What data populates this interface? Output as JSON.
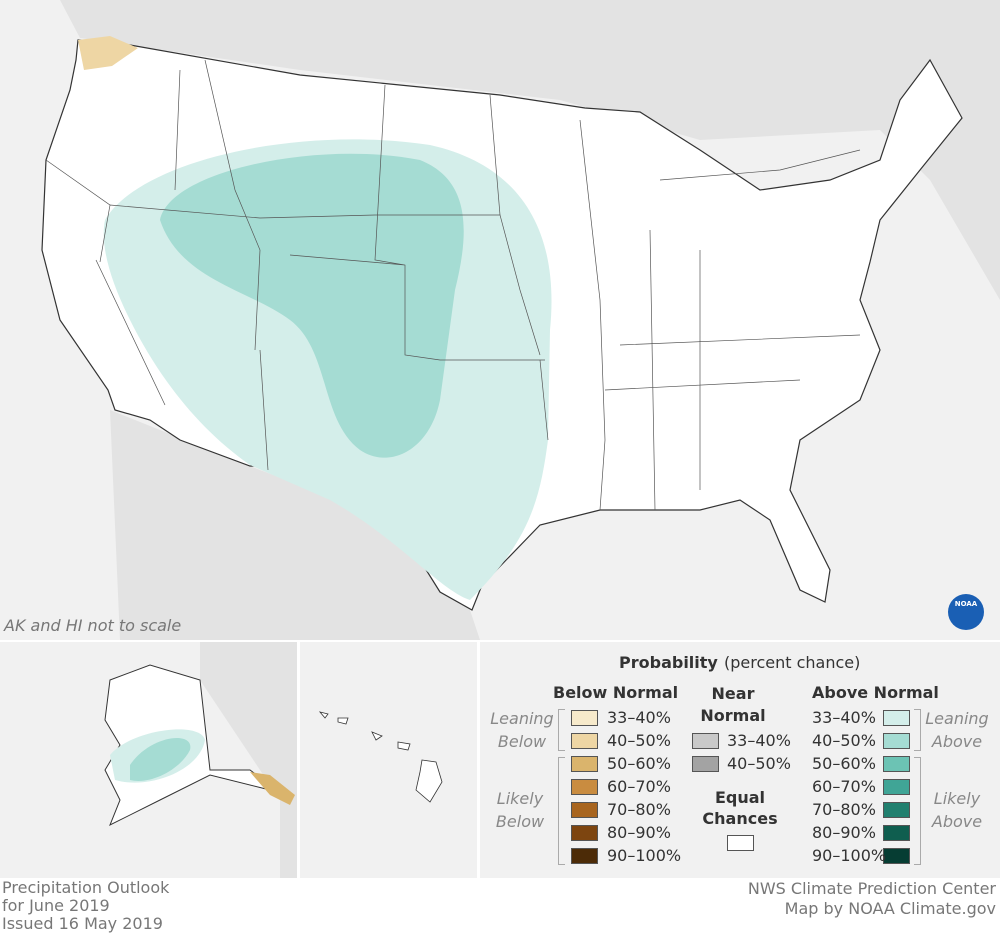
{
  "map_note": "AK and HI not to scale",
  "logo": "NOAA",
  "legend": {
    "title": "Probability",
    "subtitle": "(percent chance)",
    "below": {
      "heading": "Below Normal",
      "leaning": "Leaning Below",
      "likely": "Likely Below",
      "items": [
        {
          "label": "33–40%",
          "color": "#f7eacb"
        },
        {
          "label": "40–50%",
          "color": "#eed6a4"
        },
        {
          "label": "50–60%",
          "color": "#dab46c"
        },
        {
          "label": "60–70%",
          "color": "#c98c40"
        },
        {
          "label": "70–80%",
          "color": "#a8651f"
        },
        {
          "label": "80–90%",
          "color": "#7d4510"
        },
        {
          "label": "90–100%",
          "color": "#4c2b07"
        }
      ]
    },
    "near": {
      "heading": "Near Normal",
      "items": [
        {
          "label": "33–40%",
          "color": "#c9c9c9"
        },
        {
          "label": "40–50%",
          "color": "#a3a3a3"
        }
      ]
    },
    "equal_chances": "Equal Chances",
    "above": {
      "heading": "Above Normal",
      "leaning": "Leaning Above",
      "likely": "Likely Above",
      "items": [
        {
          "label": "33–40%",
          "color": "#d4eeea"
        },
        {
          "label": "40–50%",
          "color": "#a5dcd3"
        },
        {
          "label": "50–60%",
          "color": "#6cc3b4"
        },
        {
          "label": "60–70%",
          "color": "#40a596"
        },
        {
          "label": "70–80%",
          "color": "#22806f"
        },
        {
          "label": "80–90%",
          "color": "#0f5e4f"
        },
        {
          "label": "90–100%",
          "color": "#063d33"
        }
      ]
    }
  },
  "footer": {
    "left": [
      "Precipitation Outlook",
      "for June 2019",
      "Issued 16 May 2019"
    ],
    "right": [
      "NWS Climate Prediction Center",
      "Map by NOAA Climate.gov"
    ]
  }
}
